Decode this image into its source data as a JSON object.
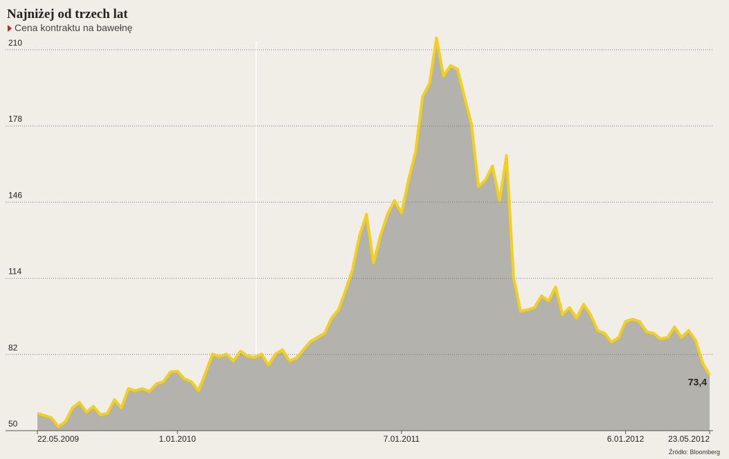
{
  "chart_data": {
    "type": "area",
    "title": "Najniżej od trzech lat",
    "subtitle": "Cena kontraktu na bawełnę",
    "source": "Źródło: Bloomberg",
    "categories": [
      "22.05.2009",
      null,
      null,
      null,
      null,
      null,
      null,
      null,
      null,
      null,
      null,
      null,
      null,
      null,
      null,
      null,
      null,
      null,
      null,
      null,
      "1.01.2010",
      null,
      null,
      null,
      null,
      null,
      null,
      null,
      null,
      null,
      null,
      null,
      null,
      null,
      null,
      null,
      null,
      null,
      null,
      null,
      null,
      null,
      null,
      null,
      null,
      null,
      null,
      null,
      null,
      null,
      null,
      null,
      "7.01.2011",
      null,
      null,
      null,
      null,
      null,
      null,
      null,
      null,
      null,
      null,
      null,
      null,
      null,
      null,
      null,
      null,
      null,
      null,
      null,
      null,
      null,
      null,
      null,
      null,
      null,
      null,
      null,
      null,
      null,
      null,
      null,
      "6.01.2012",
      null,
      null,
      null,
      null,
      null,
      null,
      null,
      null,
      null,
      null,
      null,
      "23.05.2012"
    ],
    "values": [
      57.3,
      56.4,
      55.5,
      51.7,
      53.8,
      59.6,
      61.9,
      57.8,
      60.2,
      56.7,
      57.3,
      63,
      59.6,
      67.7,
      66.8,
      67.7,
      66.5,
      69.7,
      70.6,
      74.7,
      75,
      71.8,
      70.6,
      66.8,
      74.1,
      82.2,
      81.1,
      82.2,
      79.3,
      83.4,
      81.4,
      80.8,
      82.2,
      77.6,
      82.2,
      84,
      79.3,
      80.5,
      84,
      87.5,
      89.2,
      90.9,
      97.3,
      100.8,
      108.9,
      117.7,
      132,
      140.9,
      120.5,
      132,
      140.9,
      146.7,
      141.5,
      155.4,
      167,
      190.2,
      196,
      214.9,
      199,
      203.4,
      201.9,
      190.2,
      178.6,
      152.5,
      155.4,
      161.2,
      146.7,
      165.6,
      114.7,
      100.2,
      100.8,
      101.7,
      106.6,
      104.6,
      110.4,
      98.8,
      101.7,
      97.3,
      103.1,
      98.8,
      92.1,
      90.9,
      87.2,
      89.2,
      95.9,
      96.8,
      95.9,
      91.5,
      90.9,
      88.6,
      89.2,
      93.6,
      89.2,
      92.1,
      88.0,
      78.5,
      73.4
    ],
    "value_labels": [
      null,
      null,
      null,
      null,
      null,
      null,
      null,
      null,
      null,
      null,
      null,
      null,
      null,
      null,
      null,
      null,
      null,
      null,
      null,
      null,
      null,
      null,
      null,
      null,
      null,
      null,
      null,
      null,
      null,
      null,
      null,
      null,
      null,
      null,
      null,
      null,
      null,
      null,
      null,
      null,
      null,
      null,
      null,
      null,
      null,
      null,
      null,
      null,
      null,
      null,
      null,
      null,
      null,
      null,
      null,
      null,
      null,
      null,
      null,
      null,
      null,
      null,
      null,
      null,
      null,
      null,
      null,
      null,
      null,
      null,
      null,
      null,
      null,
      null,
      null,
      null,
      null,
      null,
      null,
      null,
      null,
      null,
      null,
      null,
      null,
      null,
      null,
      null,
      null,
      null,
      null,
      null,
      null,
      null,
      null,
      null,
      "73,4"
    ],
    "line_color": "#f2d11c",
    "fill_color": "#b4b2ad",
    "ylim": [
      50,
      210
    ],
    "yticks": [
      50,
      82,
      114,
      146,
      178,
      210
    ],
    "grid": true
  }
}
